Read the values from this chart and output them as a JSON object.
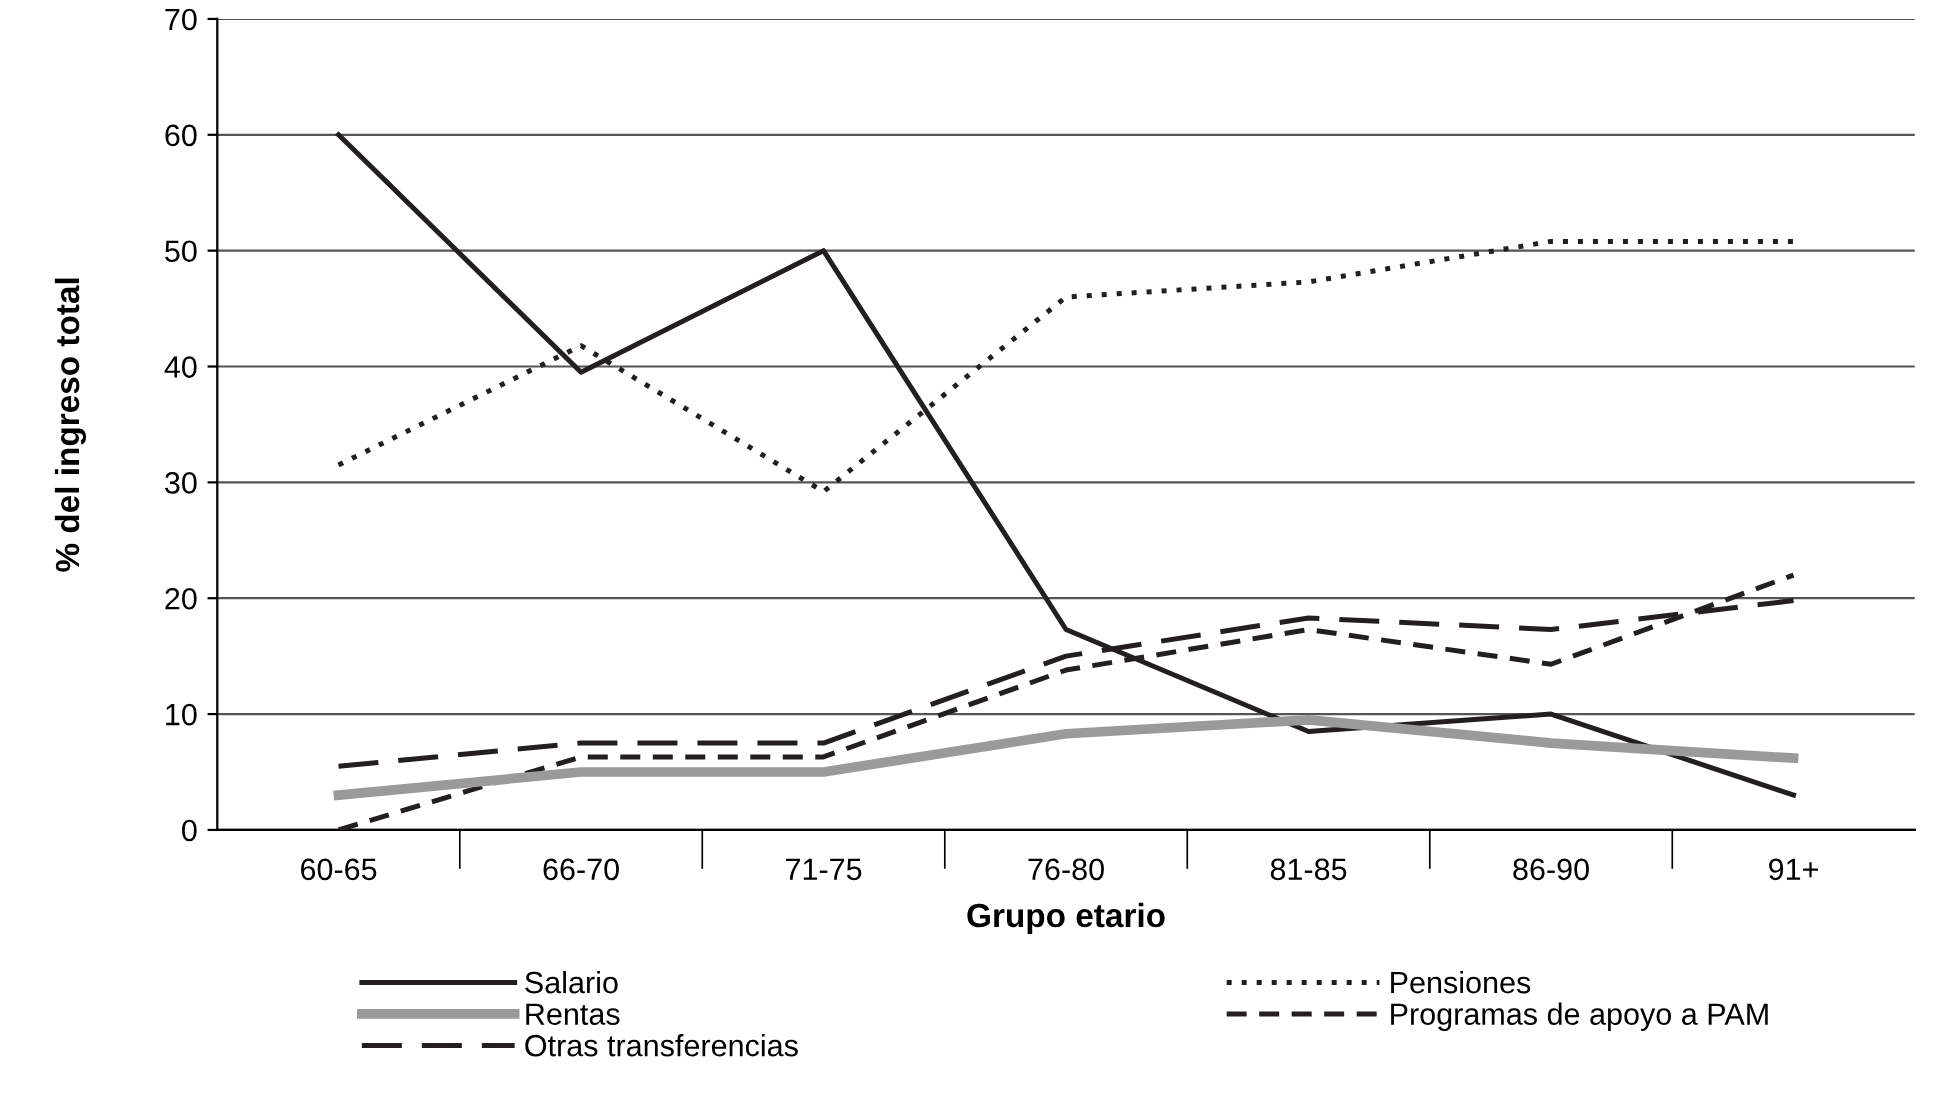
{
  "chart_data": {
    "type": "line",
    "xlabel": "Grupo etario",
    "ylabel": "% del ingreso total",
    "categories": [
      "60-65",
      "66-70",
      "71-75",
      "76-80",
      "81-85",
      "86-90",
      "91+"
    ],
    "series": [
      {
        "name": "Salario",
        "color": "#231f20",
        "line_style": "solid",
        "values": [
          60,
          39.5,
          50,
          17.3,
          8.5,
          10,
          3
        ]
      },
      {
        "name": "Otras transferencias",
        "color": "#231f20",
        "line_style": "longdash",
        "values": [
          5.5,
          7.5,
          7.5,
          15,
          18.3,
          17.3,
          19.8
        ]
      },
      {
        "name": "Programas de apoyo a PAM",
        "color": "#231f20",
        "line_style": "dashed",
        "values": [
          0,
          6.3,
          6.3,
          13.8,
          17.3,
          14.3,
          22
        ]
      },
      {
        "name": "Rentas",
        "color": "#9a9a9a",
        "line_style": "solid",
        "values": [
          3,
          5,
          5,
          8.3,
          9.5,
          7.5,
          6.2
        ]
      },
      {
        "name": "Pensiones",
        "color": "#231f20",
        "line_style": "dotted",
        "values": [
          31.5,
          41.8,
          29.2,
          46,
          47.3,
          50.8,
          50.8
        ]
      }
    ],
    "ylim": [
      0,
      70
    ],
    "yticks": [
      0,
      10,
      20,
      30,
      40,
      50,
      60,
      70
    ],
    "grid": "y",
    "legend": "bottom"
  }
}
